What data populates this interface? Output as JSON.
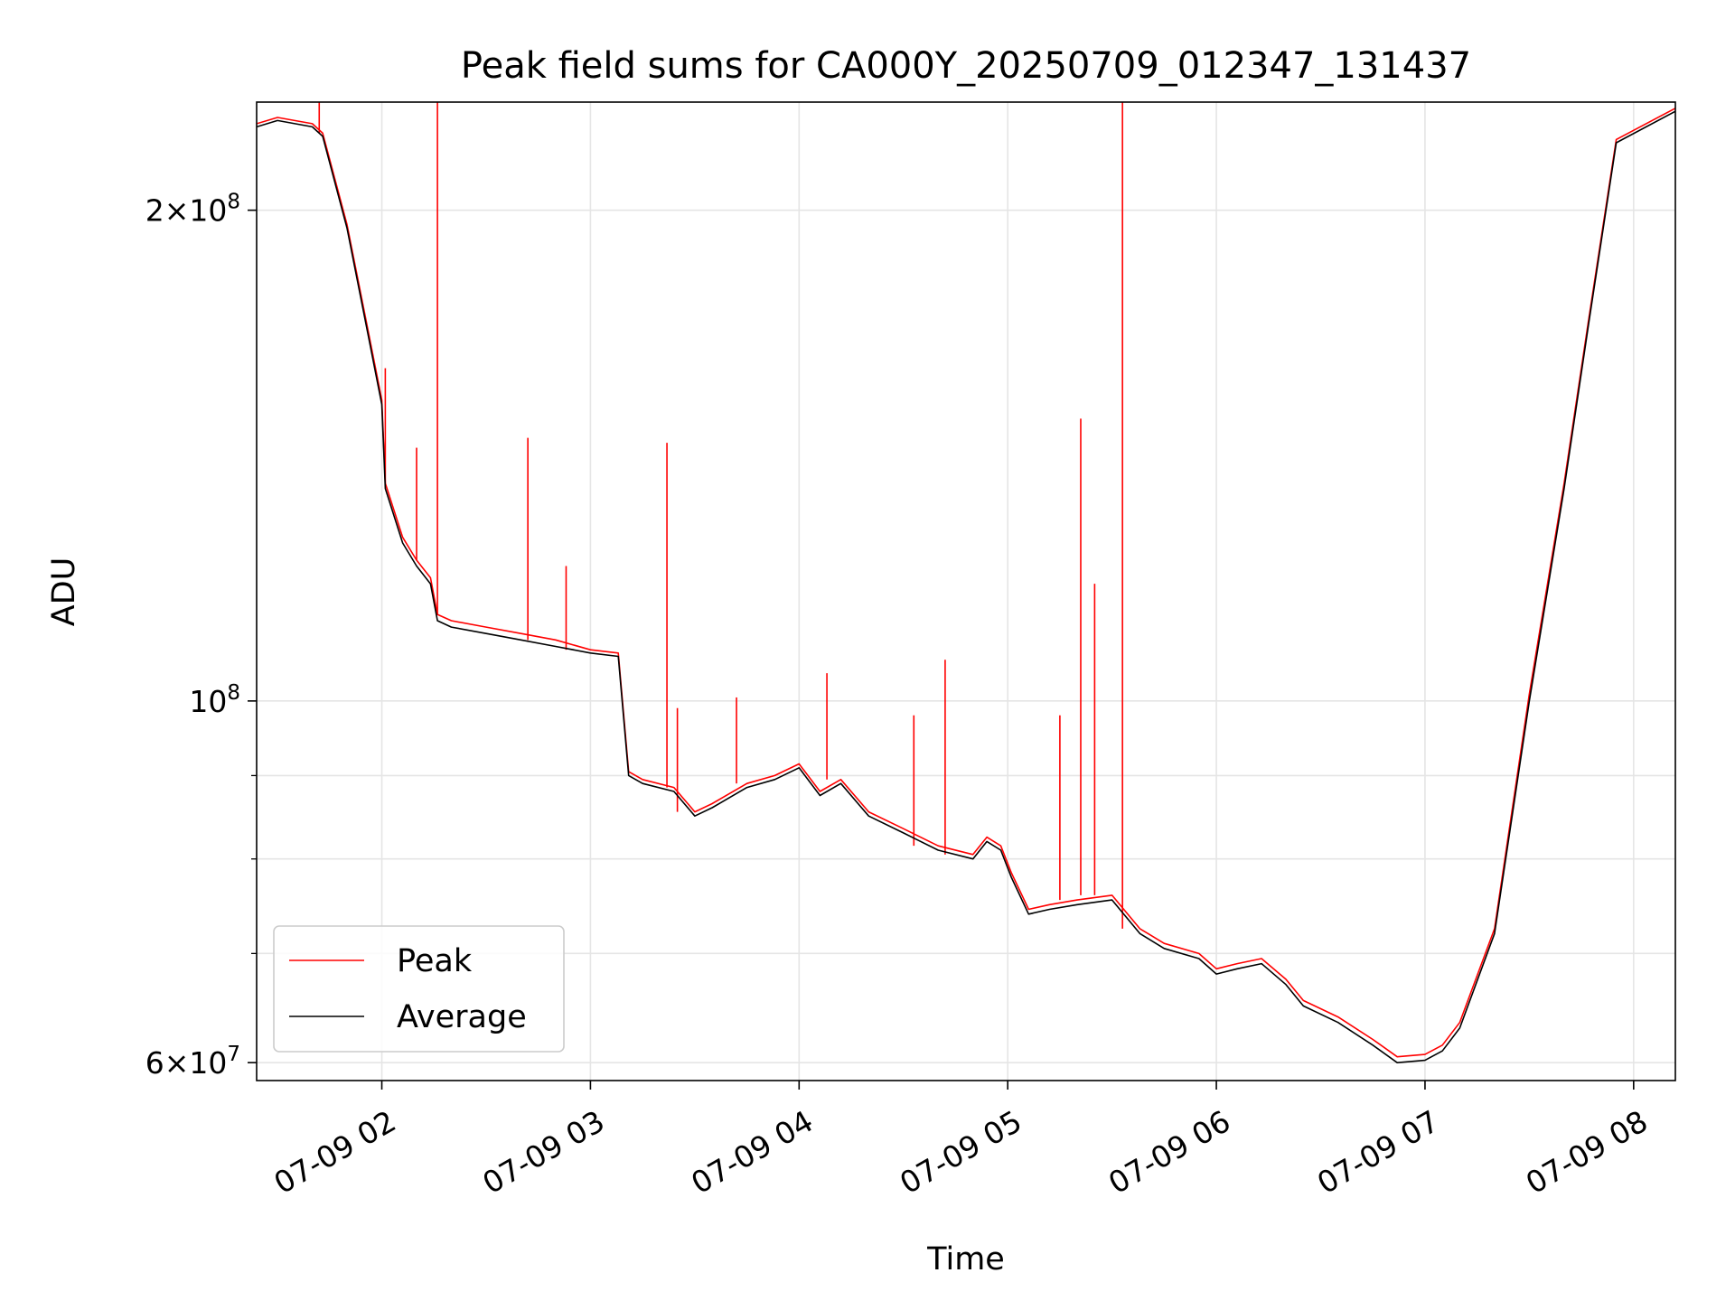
{
  "chart_data": {
    "type": "line",
    "title": "Peak field sums for CA000Y_20250709_012347_131437",
    "xlabel": "Time",
    "ylabel": "ADU",
    "y_scale": "log",
    "grid": true,
    "legend_position": "lower-left",
    "xlim": [
      "2025-07-09 01:24",
      "2025-07-09 08:12"
    ],
    "ylim": [
      58500000,
      233000000
    ],
    "x_ticks": [
      {
        "t": "2025-07-09 02:00",
        "label": "07-09 02"
      },
      {
        "t": "2025-07-09 03:00",
        "label": "07-09 03"
      },
      {
        "t": "2025-07-09 04:00",
        "label": "07-09 04"
      },
      {
        "t": "2025-07-09 05:00",
        "label": "07-09 05"
      },
      {
        "t": "2025-07-09 06:00",
        "label": "07-09 06"
      },
      {
        "t": "2025-07-09 07:00",
        "label": "07-09 07"
      },
      {
        "t": "2025-07-09 08:00",
        "label": "07-09 08"
      }
    ],
    "y_major_ticks": [
      {
        "value": 60000000,
        "base": "6",
        "exp": "7"
      },
      {
        "value": 100000000,
        "base": "",
        "exp": "8"
      },
      {
        "value": 200000000,
        "base": "2",
        "exp": "8"
      }
    ],
    "y_minor_ticks": [
      70000000,
      80000000,
      90000000
    ],
    "series": [
      {
        "name": "Average",
        "color": "#000000",
        "x": [
          "2025-07-09 01:24",
          "2025-07-09 01:30",
          "2025-07-09 01:40",
          "2025-07-09 01:43",
          "2025-07-09 01:50",
          "2025-07-09 01:56",
          "2025-07-09 02:00",
          "2025-07-09 02:01",
          "2025-07-09 02:06",
          "2025-07-09 02:10",
          "2025-07-09 02:14",
          "2025-07-09 02:16",
          "2025-07-09 02:20",
          "2025-07-09 02:30",
          "2025-07-09 02:40",
          "2025-07-09 02:50",
          "2025-07-09 03:00",
          "2025-07-09 03:08",
          "2025-07-09 03:11",
          "2025-07-09 03:15",
          "2025-07-09 03:24",
          "2025-07-09 03:30",
          "2025-07-09 03:35",
          "2025-07-09 03:45",
          "2025-07-09 03:53",
          "2025-07-09 04:00",
          "2025-07-09 04:06",
          "2025-07-09 04:12",
          "2025-07-09 04:20",
          "2025-07-09 04:30",
          "2025-07-09 04:40",
          "2025-07-09 04:50",
          "2025-07-09 04:54",
          "2025-07-09 04:58",
          "2025-07-09 05:01",
          "2025-07-09 05:06",
          "2025-07-09 05:12",
          "2025-07-09 05:20",
          "2025-07-09 05:30",
          "2025-07-09 05:38",
          "2025-07-09 05:45",
          "2025-07-09 05:55",
          "2025-07-09 06:00",
          "2025-07-09 06:06",
          "2025-07-09 06:13",
          "2025-07-09 06:20",
          "2025-07-09 06:25",
          "2025-07-09 06:35",
          "2025-07-09 06:45",
          "2025-07-09 06:52",
          "2025-07-09 07:00",
          "2025-07-09 07:05",
          "2025-07-09 07:10",
          "2025-07-09 07:20",
          "2025-07-09 07:30",
          "2025-07-09 07:40",
          "2025-07-09 07:47",
          "2025-07-09 07:55",
          "2025-07-09 08:12"
        ],
        "y": [
          225000000,
          227000000,
          225000000,
          222000000,
          195000000,
          168000000,
          152000000,
          135000000,
          125000000,
          121000000,
          118000000,
          112000000,
          111000000,
          110000000,
          109000000,
          108000000,
          107000000,
          106500000,
          90000000,
          89000000,
          88000000,
          85000000,
          86000000,
          88500000,
          89500000,
          91000000,
          87500000,
          89000000,
          85000000,
          83000000,
          81000000,
          80000000,
          82000000,
          81000000,
          78000000,
          74000000,
          74500000,
          75000000,
          75500000,
          72000000,
          70500000,
          69500000,
          68000000,
          68500000,
          69000000,
          67000000,
          65000000,
          63500000,
          61500000,
          60000000,
          60200000,
          61000000,
          63000000,
          72000000,
          100000000,
          135000000,
          170000000,
          220000000,
          230000000
        ]
      },
      {
        "name": "Peak",
        "color": "#ff0000",
        "x": [
          "2025-07-09 01:24",
          "2025-07-09 01:30",
          "2025-07-09 01:40",
          "2025-07-09 01:43",
          "2025-07-09 01:50",
          "2025-07-09 01:56",
          "2025-07-09 02:00",
          "2025-07-09 02:01",
          "2025-07-09 02:06",
          "2025-07-09 02:10",
          "2025-07-09 02:14",
          "2025-07-09 02:16",
          "2025-07-09 02:20",
          "2025-07-09 02:30",
          "2025-07-09 02:40",
          "2025-07-09 02:50",
          "2025-07-09 03:00",
          "2025-07-09 03:08",
          "2025-07-09 03:11",
          "2025-07-09 03:15",
          "2025-07-09 03:24",
          "2025-07-09 03:30",
          "2025-07-09 03:35",
          "2025-07-09 03:45",
          "2025-07-09 03:53",
          "2025-07-09 04:00",
          "2025-07-09 04:06",
          "2025-07-09 04:12",
          "2025-07-09 04:20",
          "2025-07-09 04:30",
          "2025-07-09 04:40",
          "2025-07-09 04:50",
          "2025-07-09 04:54",
          "2025-07-09 04:58",
          "2025-07-09 05:01",
          "2025-07-09 05:06",
          "2025-07-09 05:12",
          "2025-07-09 05:20",
          "2025-07-09 05:30",
          "2025-07-09 05:38",
          "2025-07-09 05:45",
          "2025-07-09 05:55",
          "2025-07-09 06:00",
          "2025-07-09 06:06",
          "2025-07-09 06:13",
          "2025-07-09 06:20",
          "2025-07-09 06:25",
          "2025-07-09 06:35",
          "2025-07-09 06:45",
          "2025-07-09 06:52",
          "2025-07-09 07:00",
          "2025-07-09 07:05",
          "2025-07-09 07:10",
          "2025-07-09 07:20",
          "2025-07-09 07:30",
          "2025-07-09 07:40",
          "2025-07-09 07:47",
          "2025-07-09 07:55",
          "2025-07-09 08:12"
        ],
        "y": [
          226000000,
          228000000,
          226000000,
          223000000,
          196000000,
          169000000,
          153000000,
          136000000,
          126000000,
          122000000,
          119000000,
          113000000,
          112000000,
          111000000,
          110000000,
          109000000,
          107500000,
          107000000,
          90500000,
          89500000,
          88500000,
          85500000,
          86500000,
          89000000,
          90000000,
          91500000,
          88000000,
          89500000,
          85500000,
          83500000,
          81500000,
          80500000,
          82500000,
          81500000,
          78500000,
          74500000,
          75000000,
          75500000,
          76000000,
          72500000,
          71000000,
          70000000,
          68500000,
          69000000,
          69500000,
          67500000,
          65500000,
          64000000,
          62000000,
          60500000,
          60700000,
          61500000,
          63500000,
          72500000,
          101000000,
          136000000,
          171000000,
          221000000,
          231000000
        ],
        "spikes": [
          {
            "t": "2025-07-09 01:42",
            "value": 233000000
          },
          {
            "t": "2025-07-09 02:01",
            "value": 160000000
          },
          {
            "t": "2025-07-09 02:10",
            "value": 143000000
          },
          {
            "t": "2025-07-09 02:16",
            "value": 233000000
          },
          {
            "t": "2025-07-09 02:42",
            "value": 145000000
          },
          {
            "t": "2025-07-09 02:53",
            "value": 121000000
          },
          {
            "t": "2025-07-09 03:22",
            "value": 144000000
          },
          {
            "t": "2025-07-09 03:25",
            "value": 99000000
          },
          {
            "t": "2025-07-09 03:42",
            "value": 100500000
          },
          {
            "t": "2025-07-09 04:08",
            "value": 104000000
          },
          {
            "t": "2025-07-09 04:33",
            "value": 98000000
          },
          {
            "t": "2025-07-09 04:42",
            "value": 106000000
          },
          {
            "t": "2025-07-09 05:15",
            "value": 98000000
          },
          {
            "t": "2025-07-09 05:21",
            "value": 149000000
          },
          {
            "t": "2025-07-09 05:25",
            "value": 118000000
          },
          {
            "t": "2025-07-09 05:33",
            "value": 233000000
          }
        ]
      }
    ],
    "legend": [
      {
        "name": "Peak",
        "color": "#ff0000"
      },
      {
        "name": "Average",
        "color": "#000000"
      }
    ]
  }
}
